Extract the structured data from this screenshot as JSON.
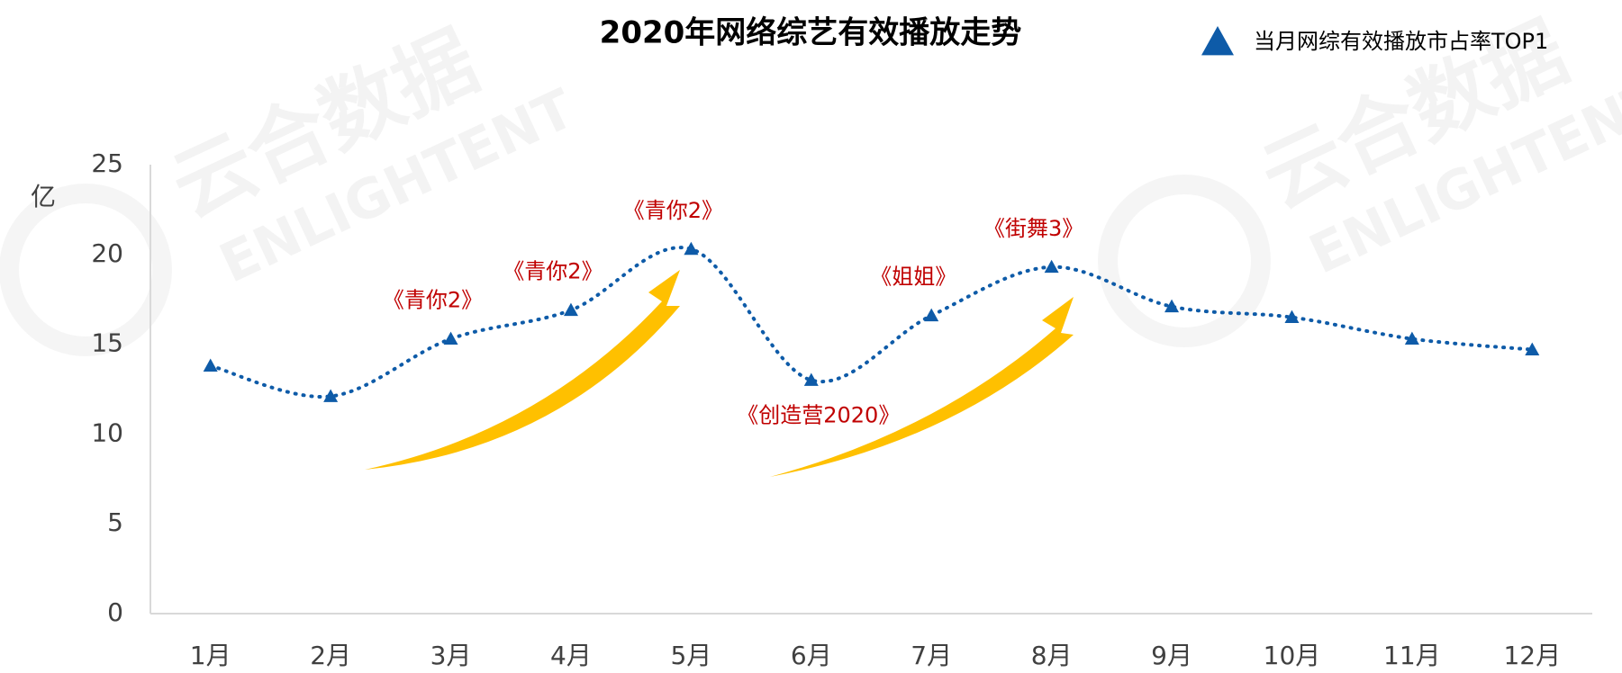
{
  "chart_data": {
    "type": "line",
    "title": "2020年网络综艺有效播放走势",
    "y_label": "亿",
    "watermark": [
      "云合数据",
      "ENLIGHTENT"
    ],
    "categories": [
      "1月",
      "2月",
      "3月",
      "4月",
      "5月",
      "6月",
      "7月",
      "8月",
      "9月",
      "10月",
      "11月",
      "12月"
    ],
    "series": [
      {
        "name": "当月网综有效播放市占率TOP1",
        "color": "#0e5ba8",
        "values": [
          13.8,
          12.1,
          15.3,
          16.9,
          20.3,
          13.0,
          16.6,
          19.3,
          17.1,
          16.5,
          15.3,
          14.7
        ]
      }
    ],
    "annotations": [
      {
        "category": "3月",
        "text": "《青你2》"
      },
      {
        "category": "4月",
        "text": "《青你2》"
      },
      {
        "category": "5月",
        "text": "《青你2》"
      },
      {
        "category": "6月",
        "text": "《创造营2020》"
      },
      {
        "category": "7月",
        "text": "《姐姐》"
      },
      {
        "category": "8月",
        "text": "《街舞3》"
      }
    ],
    "ylim": [
      0,
      25
    ],
    "yticks": [
      0,
      5,
      10,
      15,
      20,
      25
    ],
    "grid": false,
    "legend": "top-right"
  }
}
